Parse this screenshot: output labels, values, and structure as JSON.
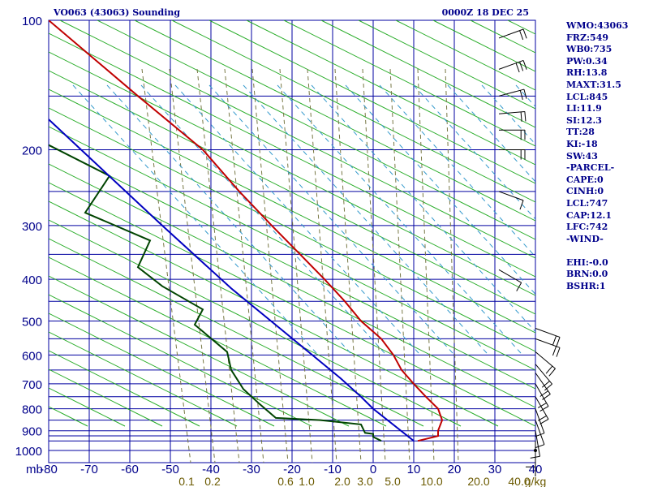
{
  "header": {
    "title": "VO063 (43063) Sounding",
    "datetime": "0000Z 18 DEC 25"
  },
  "indices": [
    "WMO:43063",
    "FRZ:549",
    "WB0:735",
    "PW:0.34",
    "RH:13.8",
    "MAXT:31.5",
    "LCL:845",
    "LI:11.9",
    "SI:12.3",
    "TT:28",
    "KI:-18",
    "SW:43",
    "-PARCEL-",
    "CAPE:0",
    "CINH:0",
    "LCL:747",
    "CAP:12.1",
    "LFC:742",
    "-WIND-",
    "",
    "EHI:-0.0",
    "BRN:0.0",
    "BSHR:1"
  ],
  "colors": {
    "grid": "#0000a0",
    "dry_adiabat": "#22aa22",
    "moist_adiabat": "#777744",
    "mixing_ratio": "#3399cc",
    "temperature": "#c00000",
    "dewpoint": "#004400",
    "parcel": "#0000c0",
    "wind": "#000000"
  },
  "chart_data": {
    "type": "line",
    "title": "VO063 (43063) Sounding",
    "xlabel": "",
    "ylabel": "mb",
    "pressure_levels": [
      100,
      150,
      200,
      250,
      300,
      350,
      400,
      450,
      500,
      550,
      600,
      650,
      700,
      750,
      800,
      850,
      900,
      925,
      950,
      1000
    ],
    "pressure_tick_labels": [
      "100",
      "200",
      "300",
      "400",
      "500",
      "600",
      "700",
      "800",
      "900",
      "1000"
    ],
    "xlim": [
      -80,
      40
    ],
    "temperature_ticks": [
      "-80",
      "-70",
      "-60",
      "-50",
      "-40",
      "-30",
      "-20",
      "-10",
      "0",
      "10",
      "20",
      "30",
      "40"
    ],
    "mixing_ratio_labels": [
      "0.1",
      "0.2",
      "0.6",
      "1.0",
      "2.0",
      "3.0",
      "5.0",
      "10.0",
      "20.0",
      "40.0"
    ],
    "mixing_ratio_unit": "g/kg",
    "series": [
      {
        "name": "Temperature",
        "points": [
          [
            -80,
            100
          ],
          [
            -58,
            150
          ],
          [
            -42,
            200
          ],
          [
            -33,
            250
          ],
          [
            -25,
            300
          ],
          [
            -18,
            350
          ],
          [
            -12,
            400
          ],
          [
            -7,
            450
          ],
          [
            -3,
            500
          ],
          [
            2,
            550
          ],
          [
            5,
            600
          ],
          [
            7,
            650
          ],
          [
            10,
            700
          ],
          [
            13,
            750
          ],
          [
            16,
            800
          ],
          [
            17,
            850
          ],
          [
            16,
            900
          ],
          [
            16,
            925
          ],
          [
            13,
            940
          ],
          [
            11,
            950
          ]
        ]
      },
      {
        "name": "Dewpoint",
        "points": [
          [
            -80,
            195
          ],
          [
            -65,
            230
          ],
          [
            -71,
            280
          ],
          [
            -55,
            325
          ],
          [
            -58,
            375
          ],
          [
            -52,
            415
          ],
          [
            -42,
            470
          ],
          [
            -44,
            510
          ],
          [
            -36,
            590
          ],
          [
            -35,
            650
          ],
          [
            -32,
            720
          ],
          [
            -28,
            780
          ],
          [
            -24,
            840
          ],
          [
            -13,
            850
          ],
          [
            -3,
            870
          ],
          [
            -2,
            910
          ],
          [
            0,
            915
          ],
          [
            0,
            930
          ],
          [
            2,
            950
          ]
        ]
      },
      {
        "name": "Parcel",
        "points": [
          [
            -80,
            170
          ],
          [
            -52,
            300
          ],
          [
            -35,
            420
          ],
          [
            -23,
            520
          ],
          [
            -15,
            600
          ],
          [
            -8,
            680
          ],
          [
            -3,
            750
          ],
          [
            0,
            800
          ],
          [
            10,
            950
          ]
        ]
      }
    ],
    "wind_barbs": [
      {
        "p": 110,
        "dir": 250,
        "kt": 20
      },
      {
        "p": 130,
        "dir": 250,
        "kt": 25
      },
      {
        "p": 150,
        "dir": 255,
        "kt": 20
      },
      {
        "p": 165,
        "dir": 265,
        "kt": 20
      },
      {
        "p": 180,
        "dir": 270,
        "kt": 20
      },
      {
        "p": 200,
        "dir": 270,
        "kt": 15
      },
      {
        "p": 250,
        "dir": 290,
        "kt": 10
      },
      {
        "p": 380,
        "dir": 300,
        "kt": 10
      },
      {
        "p": 520,
        "dir": 290,
        "kt": 15
      },
      {
        "p": 550,
        "dir": 290,
        "kt": 15
      },
      {
        "p": 590,
        "dir": 310,
        "kt": 15
      },
      {
        "p": 630,
        "dir": 320,
        "kt": 15
      },
      {
        "p": 660,
        "dir": 325,
        "kt": 15
      },
      {
        "p": 700,
        "dir": 330,
        "kt": 15
      },
      {
        "p": 750,
        "dir": 330,
        "kt": 15
      },
      {
        "p": 800,
        "dir": 340,
        "kt": 10
      },
      {
        "p": 850,
        "dir": 340,
        "kt": 10
      },
      {
        "p": 900,
        "dir": 350,
        "kt": 10
      },
      {
        "p": 950,
        "dir": 0,
        "kt": 5
      },
      {
        "p": 1000,
        "dir": 0,
        "kt": 0
      }
    ]
  }
}
